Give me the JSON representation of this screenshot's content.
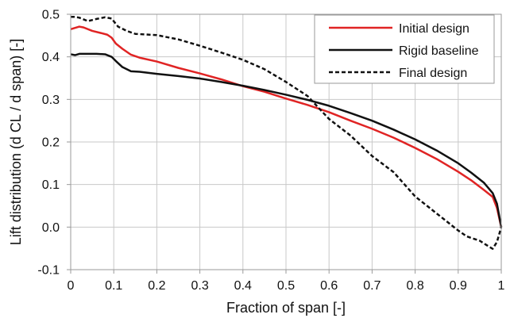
{
  "chart_data": {
    "type": "line",
    "xlabel": "Fraction of span [-]",
    "ylabel": "Lift distribution (d CL / d span) [-]",
    "xlim": [
      0,
      1
    ],
    "ylim": [
      -0.1,
      0.5
    ],
    "xticks": [
      "0",
      "0.1",
      "0.2",
      "0.3",
      "0.4",
      "0.5",
      "0.6",
      "0.7",
      "0.8",
      "0.9",
      "1"
    ],
    "yticks": [
      "-0.1",
      "0.0",
      "0.1",
      "0.2",
      "0.3",
      "0.4",
      "0.5"
    ],
    "grid": true,
    "legend_position": "top-right",
    "series": [
      {
        "name": "Initial design",
        "color": "#e02424",
        "style": "solid",
        "x": [
          0,
          0.01,
          0.02,
          0.03,
          0.05,
          0.07,
          0.085,
          0.095,
          0.105,
          0.12,
          0.14,
          0.16,
          0.2,
          0.25,
          0.3,
          0.35,
          0.4,
          0.45,
          0.5,
          0.55,
          0.6,
          0.65,
          0.7,
          0.75,
          0.8,
          0.85,
          0.9,
          0.93,
          0.96,
          0.98,
          0.99,
          1.0
        ],
        "y": [
          0.465,
          0.468,
          0.471,
          0.469,
          0.461,
          0.456,
          0.452,
          0.445,
          0.431,
          0.419,
          0.405,
          0.398,
          0.389,
          0.374,
          0.361,
          0.347,
          0.331,
          0.318,
          0.302,
          0.287,
          0.27,
          0.25,
          0.231,
          0.21,
          0.186,
          0.16,
          0.13,
          0.11,
          0.087,
          0.071,
          0.045,
          0.0
        ]
      },
      {
        "name": "Rigid baseline",
        "color": "#111111",
        "style": "solid",
        "x": [
          0,
          0.01,
          0.02,
          0.04,
          0.06,
          0.08,
          0.095,
          0.105,
          0.12,
          0.14,
          0.16,
          0.2,
          0.25,
          0.3,
          0.35,
          0.4,
          0.45,
          0.5,
          0.55,
          0.6,
          0.65,
          0.7,
          0.75,
          0.8,
          0.85,
          0.9,
          0.93,
          0.96,
          0.98,
          0.99,
          1.0
        ],
        "y": [
          0.406,
          0.404,
          0.407,
          0.407,
          0.407,
          0.406,
          0.4,
          0.39,
          0.376,
          0.366,
          0.365,
          0.36,
          0.355,
          0.349,
          0.341,
          0.332,
          0.322,
          0.311,
          0.299,
          0.285,
          0.268,
          0.25,
          0.229,
          0.206,
          0.18,
          0.15,
          0.128,
          0.104,
          0.08,
          0.055,
          0.0
        ]
      },
      {
        "name": "Final design",
        "color": "#111111",
        "style": "dashed",
        "x": [
          0,
          0.01,
          0.02,
          0.04,
          0.06,
          0.08,
          0.095,
          0.11,
          0.13,
          0.15,
          0.2,
          0.25,
          0.3,
          0.35,
          0.4,
          0.45,
          0.5,
          0.55,
          0.6,
          0.65,
          0.7,
          0.75,
          0.8,
          0.85,
          0.9,
          0.92,
          0.95,
          0.97,
          0.98,
          0.99,
          1.0
        ],
        "y": [
          0.494,
          0.494,
          0.492,
          0.484,
          0.489,
          0.493,
          0.49,
          0.471,
          0.461,
          0.454,
          0.451,
          0.441,
          0.426,
          0.41,
          0.393,
          0.371,
          0.341,
          0.308,
          0.254,
          0.215,
          0.167,
          0.129,
          0.072,
          0.032,
          -0.008,
          -0.022,
          -0.032,
          -0.045,
          -0.051,
          -0.035,
          0.0
        ]
      }
    ]
  }
}
